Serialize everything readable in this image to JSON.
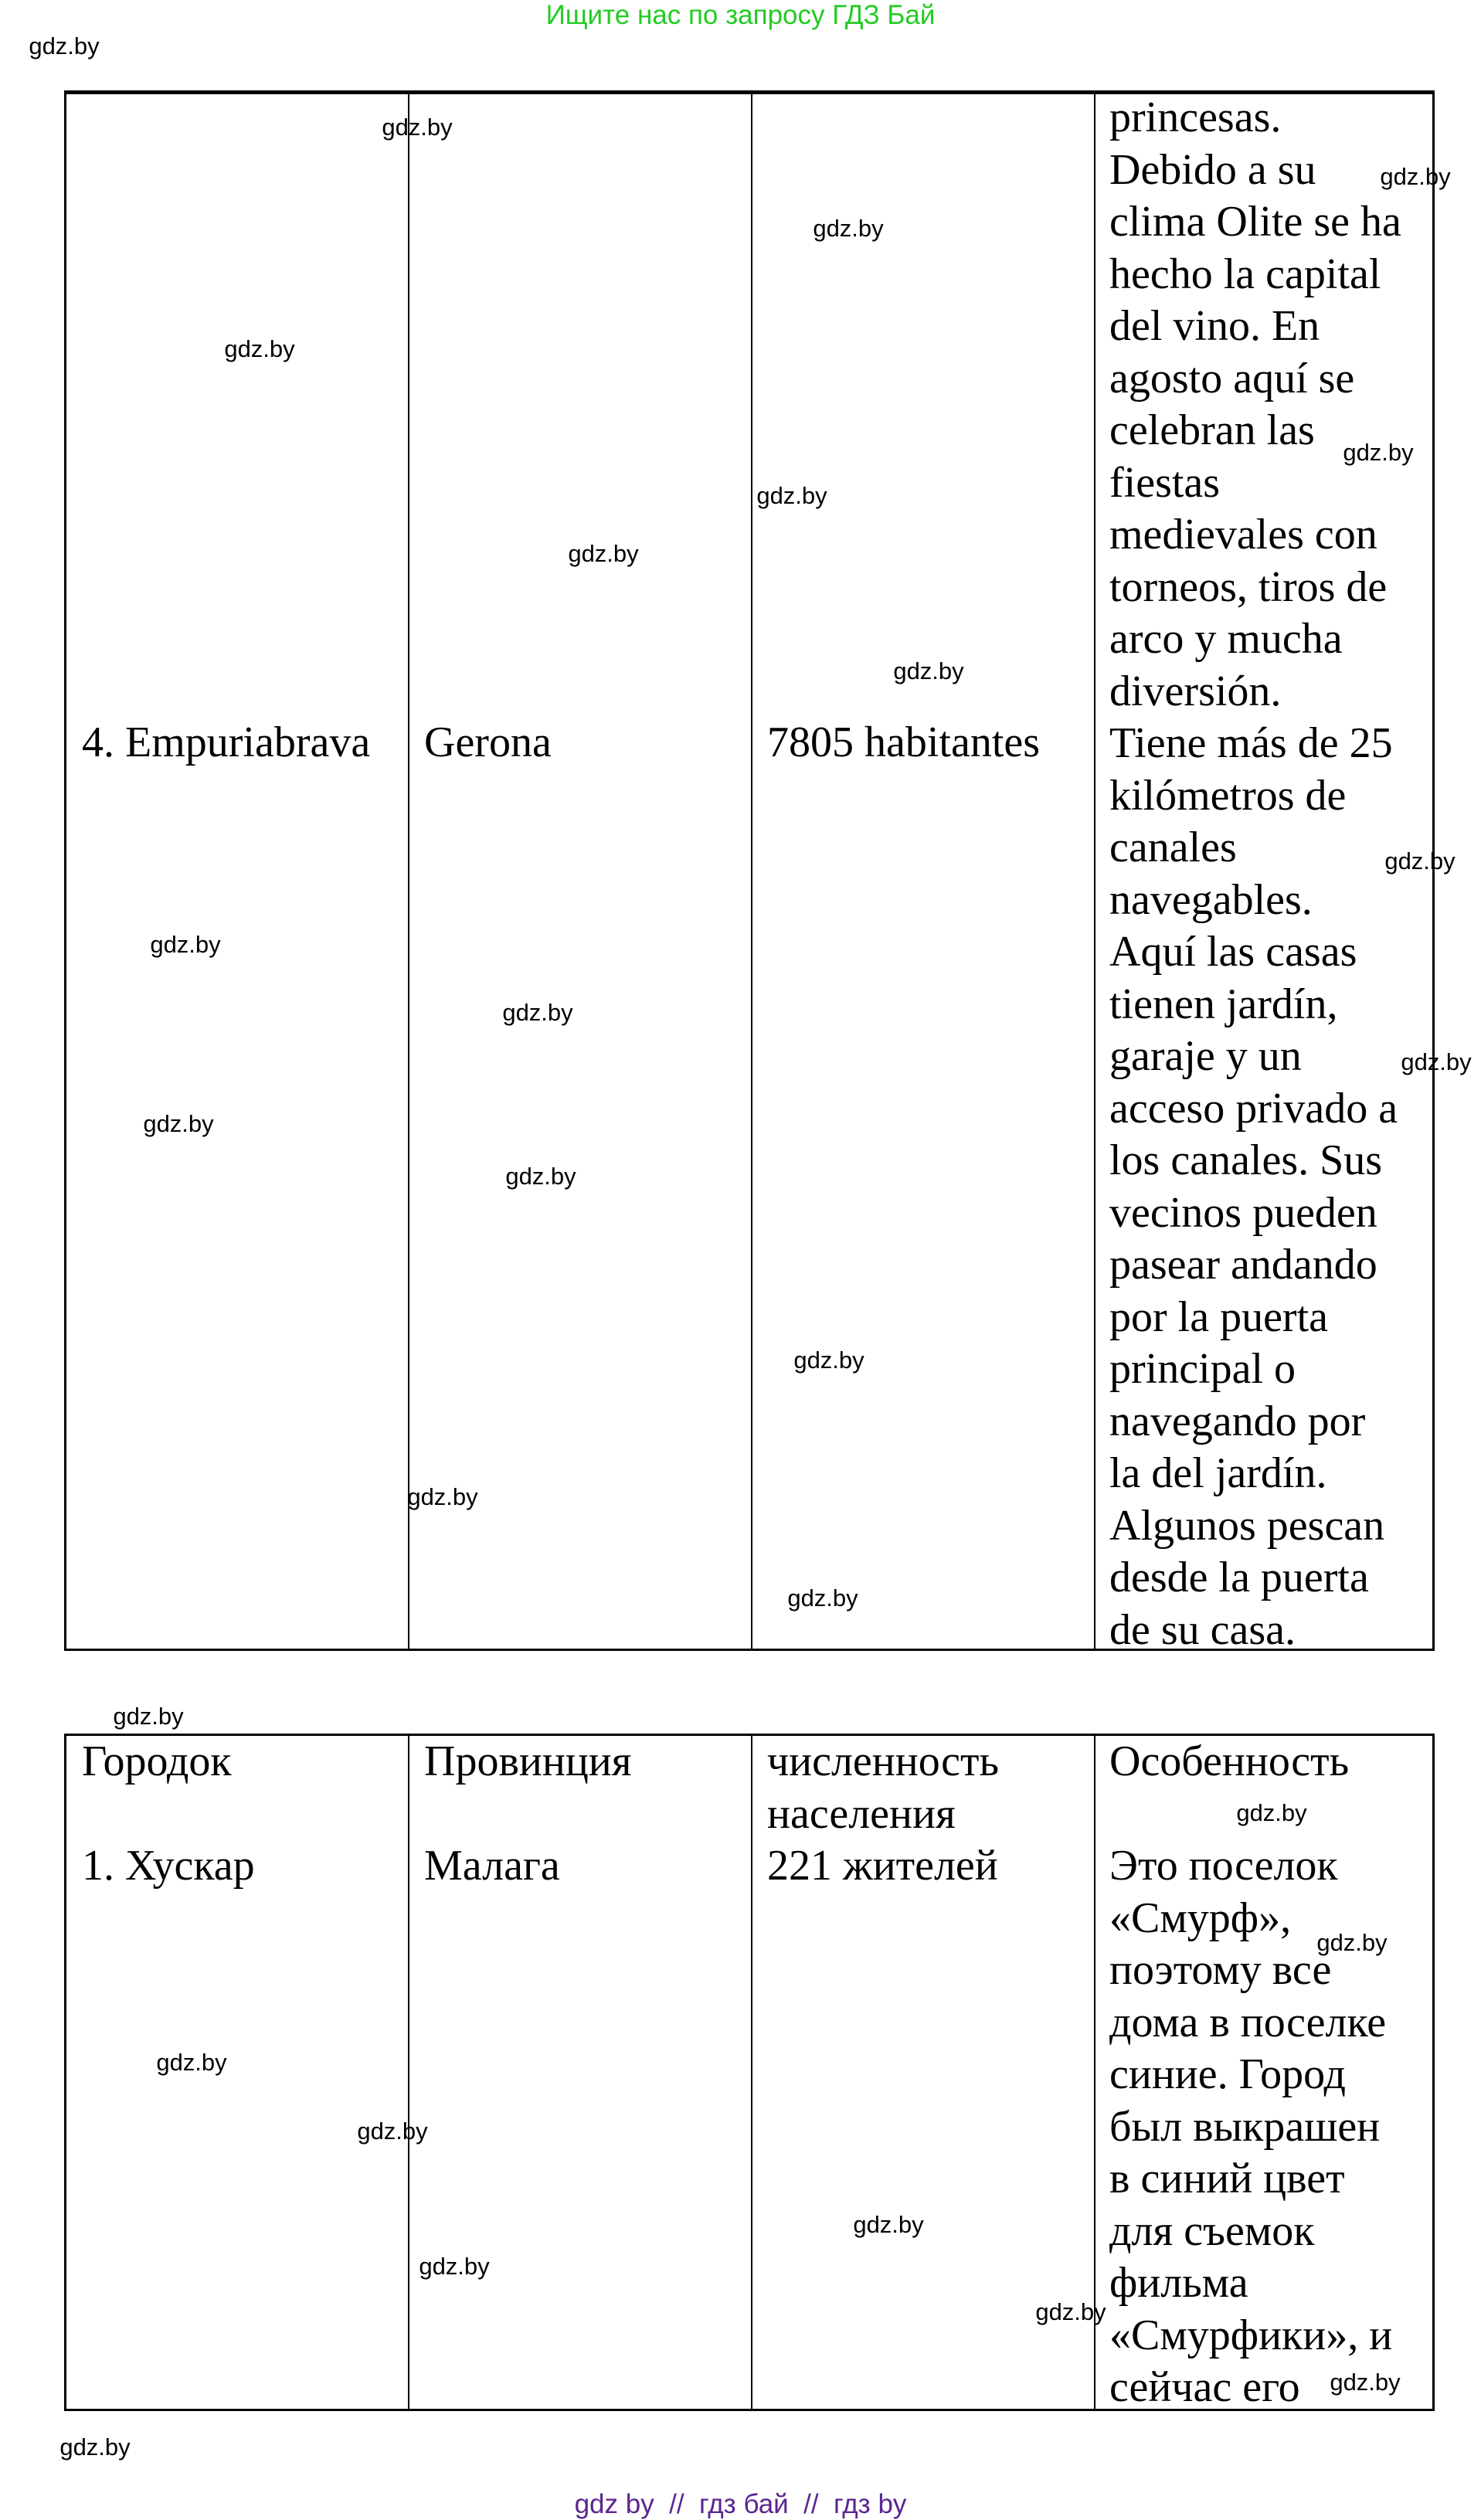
{
  "header_banner": "Ищите нас по запросу ГДЗ Бай",
  "watermark": "gdz.by",
  "footer": "gdz by  //  гдз бай  //  гдз by",
  "table1": {
    "row": {
      "town": "4. Empuriabrava",
      "province": "Gerona",
      "population": "7805 habitantes"
    },
    "feature_lines": [
      "princesas.",
      "Debido a su",
      "clima Olite se ha",
      "hecho la capital",
      "del vino. En",
      "agosto aquí se",
      "celebran las",
      "fiestas",
      "medievales con",
      "torneos, tiros de",
      "arco y mucha",
      "diversión.",
      "Tiene más de 25",
      "kilómetros de",
      "canales",
      "navegables.",
      "Aquí las casas",
      "tienen jardín,",
      "garaje y un",
      "acceso privado a",
      "los canales. Sus",
      "vecinos pueden",
      "pasear andando",
      "por la puerta",
      "principal o",
      "navegando por",
      "la del jardín.",
      "Algunos pescan",
      "desde la puerta",
      "de su casa."
    ]
  },
  "table2": {
    "headers": {
      "town": "Городок",
      "province": "Провинция",
      "population_lines": [
        "численность",
        "населения"
      ],
      "feature": "Особенность"
    },
    "row": {
      "town": "1. Хускар",
      "province": "Малага",
      "population": "221 жителей",
      "feature_lines": [
        "Это поселок",
        "«Смурф»,",
        "поэтому все",
        "дома в поселке",
        "синие. Город",
        "был выкрашен",
        "в синий цвет",
        "для съемок",
        "фильма",
        "«Смурфики», и",
        "сейчас его"
      ]
    }
  }
}
